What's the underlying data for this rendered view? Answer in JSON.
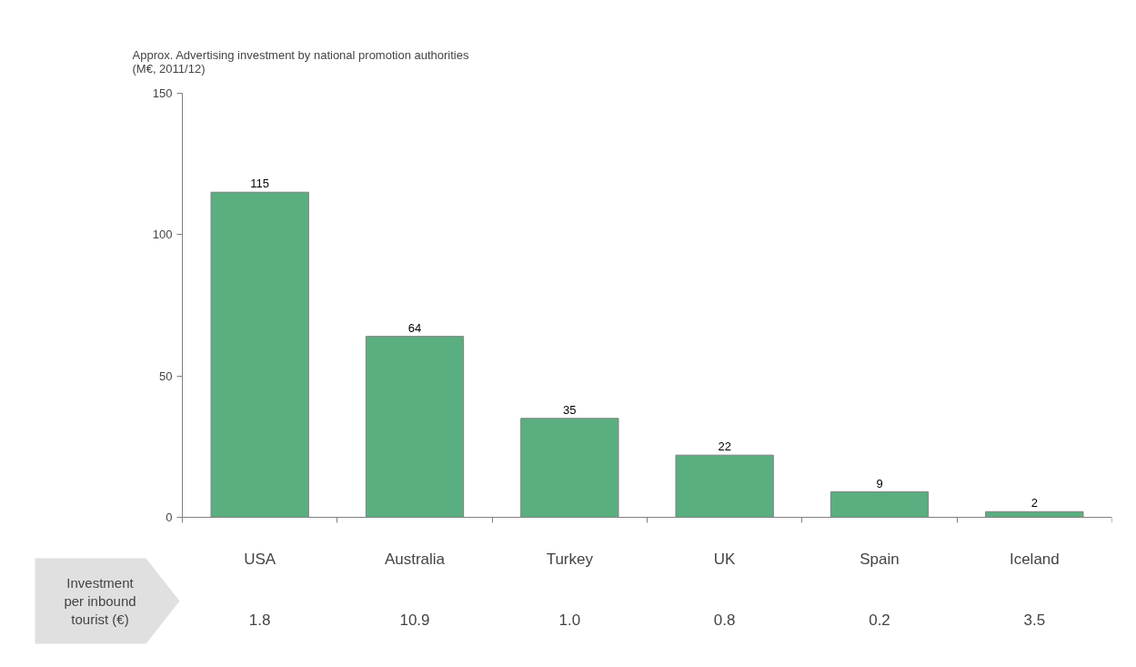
{
  "chart_data": {
    "type": "bar",
    "title": "Approx. Advertising investment by national promotion authorities\n (M€, 2011/12)",
    "categories": [
      "USA",
      "Australia",
      "Turkey",
      "UK",
      "Spain",
      "Iceland"
    ],
    "values": [
      115,
      64,
      35,
      22,
      9,
      2
    ],
    "color": "#5aaf80",
    "data_labels": true,
    "ylim": [
      0,
      150
    ],
    "yticks": [
      0,
      50,
      100,
      150
    ],
    "grid": false,
    "annotations": [
      "Investment per inbound tourist (€)",
      "1.8",
      "10.9",
      "1.0",
      "0.8",
      "0.2",
      "3.5"
    ]
  }
}
